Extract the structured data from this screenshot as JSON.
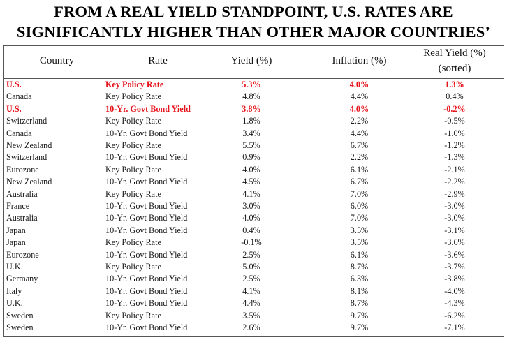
{
  "title_line1": "FROM A REAL YIELD STANDPOINT, U.S. RATES ARE",
  "title_line2": "SIGNIFICANTLY HIGHER THAN OTHER MAJOR COUNTRIES’",
  "colors": {
    "highlight": "#e6141c",
    "text": "#1a1a1a",
    "border": "#555555"
  },
  "chart_data": {
    "type": "table",
    "columns": [
      "Country",
      "Rate",
      "Yield (%)",
      "Inflation (%)",
      "Real Yield (%)",
      "(sorted)"
    ],
    "rows": [
      {
        "country": "U.S.",
        "rate": "Key Policy Rate",
        "yield": "5.3%",
        "inflation": "4.0%",
        "real": "1.3%",
        "highlight": true
      },
      {
        "country": "Canada",
        "rate": "Key Policy Rate",
        "yield": "4.8%",
        "inflation": "4.4%",
        "real": "0.4%",
        "highlight": false
      },
      {
        "country": "U.S.",
        "rate": "10-Yr. Govt Bond Yield",
        "yield": "3.8%",
        "inflation": "4.0%",
        "real": "-0.2%",
        "highlight": true
      },
      {
        "country": "Switzerland",
        "rate": "Key Policy Rate",
        "yield": "1.8%",
        "inflation": "2.2%",
        "real": "-0.5%",
        "highlight": false
      },
      {
        "country": "Canada",
        "rate": "10-Yr. Govt Bond Yield",
        "yield": "3.4%",
        "inflation": "4.4%",
        "real": "-1.0%",
        "highlight": false
      },
      {
        "country": "New Zealand",
        "rate": "Key Policy Rate",
        "yield": "5.5%",
        "inflation": "6.7%",
        "real": "-1.2%",
        "highlight": false
      },
      {
        "country": "Switzerland",
        "rate": "10-Yr. Govt Bond Yield",
        "yield": "0.9%",
        "inflation": "2.2%",
        "real": "-1.3%",
        "highlight": false
      },
      {
        "country": "Eurozone",
        "rate": "Key Policy Rate",
        "yield": "4.0%",
        "inflation": "6.1%",
        "real": "-2.1%",
        "highlight": false
      },
      {
        "country": "New Zealand",
        "rate": "10-Yr. Govt Bond Yield",
        "yield": "4.5%",
        "inflation": "6.7%",
        "real": "-2.2%",
        "highlight": false
      },
      {
        "country": "Australia",
        "rate": "Key Policy Rate",
        "yield": "4.1%",
        "inflation": "7.0%",
        "real": "-2.9%",
        "highlight": false
      },
      {
        "country": "France",
        "rate": "10-Yr. Govt Bond Yield",
        "yield": "3.0%",
        "inflation": "6.0%",
        "real": "-3.0%",
        "highlight": false
      },
      {
        "country": "Australia",
        "rate": "10-Yr. Govt Bond Yield",
        "yield": "4.0%",
        "inflation": "7.0%",
        "real": "-3.0%",
        "highlight": false
      },
      {
        "country": "Japan",
        "rate": "10-Yr. Govt Bond Yield",
        "yield": "0.4%",
        "inflation": "3.5%",
        "real": "-3.1%",
        "highlight": false
      },
      {
        "country": "Japan",
        "rate": "Key Policy Rate",
        "yield": "-0.1%",
        "inflation": "3.5%",
        "real": "-3.6%",
        "highlight": false
      },
      {
        "country": "Eurozone",
        "rate": "10-Yr. Govt Bond Yield",
        "yield": "2.5%",
        "inflation": "6.1%",
        "real": "-3.6%",
        "highlight": false
      },
      {
        "country": "U.K.",
        "rate": "Key Policy Rate",
        "yield": "5.0%",
        "inflation": "8.7%",
        "real": "-3.7%",
        "highlight": false
      },
      {
        "country": "Germany",
        "rate": "10-Yr. Govt Bond Yield",
        "yield": "2.5%",
        "inflation": "6.3%",
        "real": "-3.8%",
        "highlight": false
      },
      {
        "country": "Italy",
        "rate": "10-Yr. Govt Bond Yield",
        "yield": "4.1%",
        "inflation": "8.1%",
        "real": "-4.0%",
        "highlight": false
      },
      {
        "country": "U.K.",
        "rate": "10-Yr. Govt Bond Yield",
        "yield": "4.4%",
        "inflation": "8.7%",
        "real": "-4.3%",
        "highlight": false
      },
      {
        "country": "Sweden",
        "rate": "Key Policy Rate",
        "yield": "3.5%",
        "inflation": "9.7%",
        "real": "-6.2%",
        "highlight": false
      },
      {
        "country": "Sweden",
        "rate": "10-Yr. Govt Bond Yield",
        "yield": "2.6%",
        "inflation": "9.7%",
        "real": "-7.1%",
        "highlight": false
      }
    ]
  }
}
